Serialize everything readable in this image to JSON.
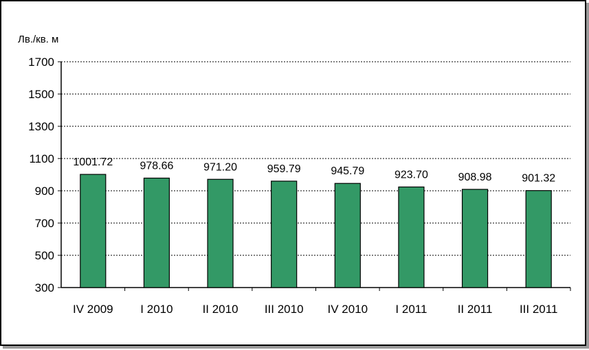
{
  "chart_data": {
    "type": "bar",
    "title": "",
    "xlabel": "",
    "ylabel": "Лв./кв. м",
    "categories": [
      "IV 2009",
      "I 2010",
      "II 2010",
      "III 2010",
      "IV 2010",
      "I 2011",
      "II 2011",
      "III 2011"
    ],
    "values": [
      1001.72,
      978.66,
      971.2,
      959.79,
      945.79,
      923.7,
      908.98,
      901.32
    ],
    "data_labels": [
      "1001.72",
      "978.66",
      "971.20",
      "959.79",
      "945.79",
      "923.70",
      "908.98",
      "901.32"
    ],
    "yticks": [
      "300",
      "500",
      "700",
      "900",
      "1100",
      "1300",
      "1500",
      "1700"
    ],
    "ylim": [
      300,
      1700
    ],
    "grid": true,
    "grid_style": "dotted",
    "legend": "none",
    "bar_color": "#339966"
  }
}
